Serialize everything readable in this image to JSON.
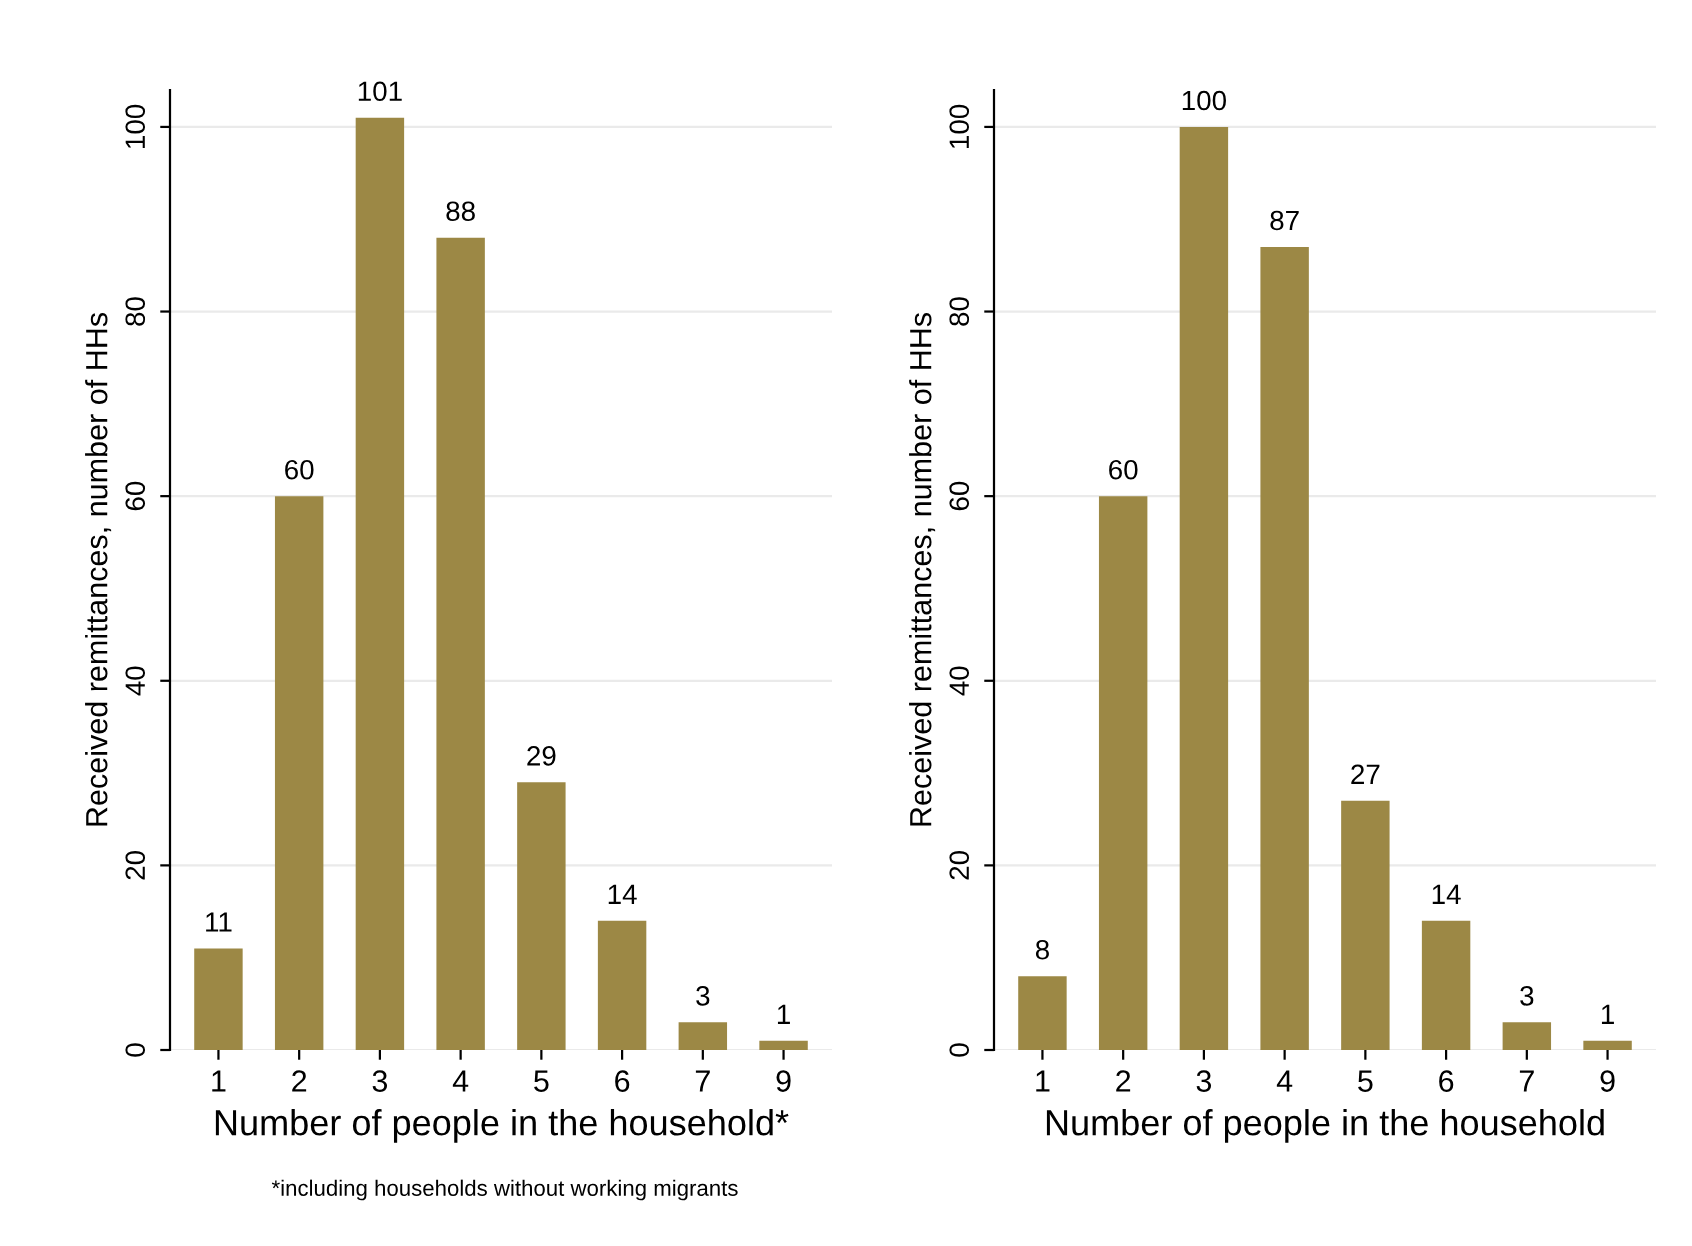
{
  "chart_data": [
    {
      "type": "bar",
      "xlabel": "Number of people in the household*",
      "ylabel": "Received remittances, number of HHs",
      "categories": [
        "1",
        "2",
        "3",
        "4",
        "5",
        "6",
        "7",
        "9"
      ],
      "values": [
        11,
        60,
        101,
        88,
        29,
        14,
        3,
        1
      ],
      "color": "#9c8845",
      "ylim": [
        0,
        104
      ],
      "yticks": [
        0,
        20,
        40,
        60,
        80,
        100
      ],
      "grid": "y",
      "data_labels": true,
      "annotations": [
        "*including households without working migrants"
      ]
    },
    {
      "type": "bar",
      "xlabel": "Number of people in the household",
      "ylabel": "Received remittances, number of HHs",
      "categories": [
        "1",
        "2",
        "3",
        "4",
        "5",
        "6",
        "7",
        "9"
      ],
      "values": [
        8,
        60,
        100,
        87,
        27,
        14,
        3,
        1
      ],
      "color": "#9c8845",
      "ylim": [
        0,
        104
      ],
      "yticks": [
        0,
        20,
        40,
        60,
        80,
        100
      ],
      "grid": "y",
      "data_labels": true
    }
  ]
}
